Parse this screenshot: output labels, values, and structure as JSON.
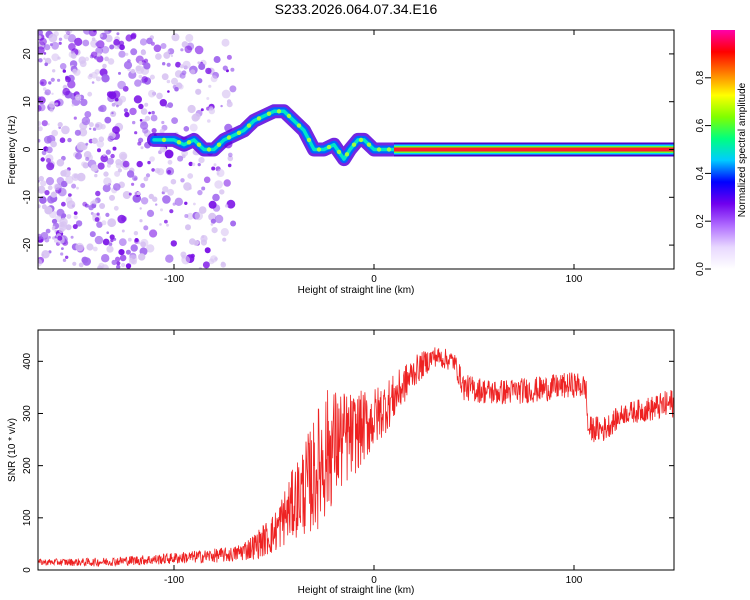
{
  "title": "S233.2026.064.07.34.E16",
  "colors": {
    "snr_line": "#ee2222",
    "dot_faint": "#d8c4f2",
    "dot_mid": "#a066ee",
    "dot_strong": "#7a10e6",
    "axis": "#000000",
    "background": "#ffffff"
  },
  "chart_data": [
    {
      "type": "heatmap",
      "panel": "top",
      "xlabel": "Height of straight line (km)",
      "ylabel": "Frequency (Hz)",
      "xlim": [
        -168,
        150
      ],
      "ylim": [
        -25,
        25
      ],
      "xticks": [
        -100,
        0,
        100
      ],
      "xtick_labels": [
        "-100",
        "0",
        "100"
      ],
      "yticks": [
        -20,
        -10,
        0,
        10,
        20
      ],
      "ytick_labels": [
        "-20",
        "-10",
        "0",
        "10",
        "20"
      ],
      "ridge": {
        "description": "dominant spectral ridge",
        "x": [
          -110,
          -100,
          -95,
          -90,
          -85,
          -80,
          -75,
          -70,
          -65,
          -60,
          -55,
          -50,
          -45,
          -40,
          -35,
          -30,
          -25,
          -20,
          -15,
          -12,
          -8,
          -5,
          0,
          5,
          10
        ],
        "y": [
          2,
          2,
          1,
          2,
          0,
          0,
          2,
          3,
          4,
          6,
          7,
          8,
          8,
          6,
          4,
          0,
          0,
          1,
          -2,
          0,
          2,
          2,
          0,
          0,
          0
        ],
        "peak_amplitude": 0.4
      },
      "band": {
        "description": "high-amplitude band at constant frequency",
        "x_start": 10,
        "x_end": 150,
        "frequency": 0,
        "peak_amplitude": 0.95
      },
      "noise_region": {
        "x_start": -168,
        "x_end": -70,
        "amplitude_range": [
          0.05,
          0.2
        ]
      }
    },
    {
      "type": "colorbar",
      "label": "Normalized spectral amplitude",
      "range": [
        0,
        1
      ],
      "ticks": [
        0.0,
        0.2,
        0.4,
        0.6,
        0.8
      ],
      "tick_labels": [
        "0.0",
        "0.2",
        "0.4",
        "0.6",
        "0.8"
      ],
      "colors": [
        "#ffffff",
        "#e8d8ff",
        "#b06cff",
        "#7000ee",
        "#0000ff",
        "#00ccff",
        "#00ff80",
        "#80ff00",
        "#ffff00",
        "#ff8000",
        "#ff0000",
        "#ff00aa"
      ]
    },
    {
      "type": "line",
      "panel": "bottom",
      "xlabel": "Height of straight line (km)",
      "ylabel": "SNR (10 * v/v)",
      "xlim": [
        -168,
        150
      ],
      "ylim": [
        0,
        460
      ],
      "xticks": [
        -100,
        0,
        100
      ],
      "xtick_labels": [
        "-100",
        "0",
        "100"
      ],
      "yticks": [
        0,
        100,
        200,
        300,
        400
      ],
      "ytick_labels": [
        "0",
        "100",
        "200",
        "300",
        "400"
      ],
      "series": [
        {
          "name": "SNR",
          "x": [
            -168,
            -140,
            -110,
            -90,
            -70,
            -60,
            -50,
            -40,
            -30,
            -25,
            -20,
            -10,
            0,
            10,
            20,
            30,
            40,
            45,
            60,
            80,
            100,
            106,
            107,
            115,
            125,
            140,
            150
          ],
          "y": [
            15,
            15,
            20,
            25,
            30,
            45,
            70,
            130,
            180,
            220,
            240,
            260,
            290,
            330,
            380,
            410,
            400,
            350,
            340,
            345,
            355,
            350,
            270,
            270,
            300,
            310,
            320
          ],
          "noise": [
            6,
            8,
            10,
            12,
            15,
            25,
            40,
            70,
            110,
            130,
            110,
            80,
            60,
            45,
            30,
            20,
            20,
            25,
            25,
            25,
            25,
            25,
            25,
            25,
            20,
            25,
            30
          ]
        }
      ]
    }
  ]
}
